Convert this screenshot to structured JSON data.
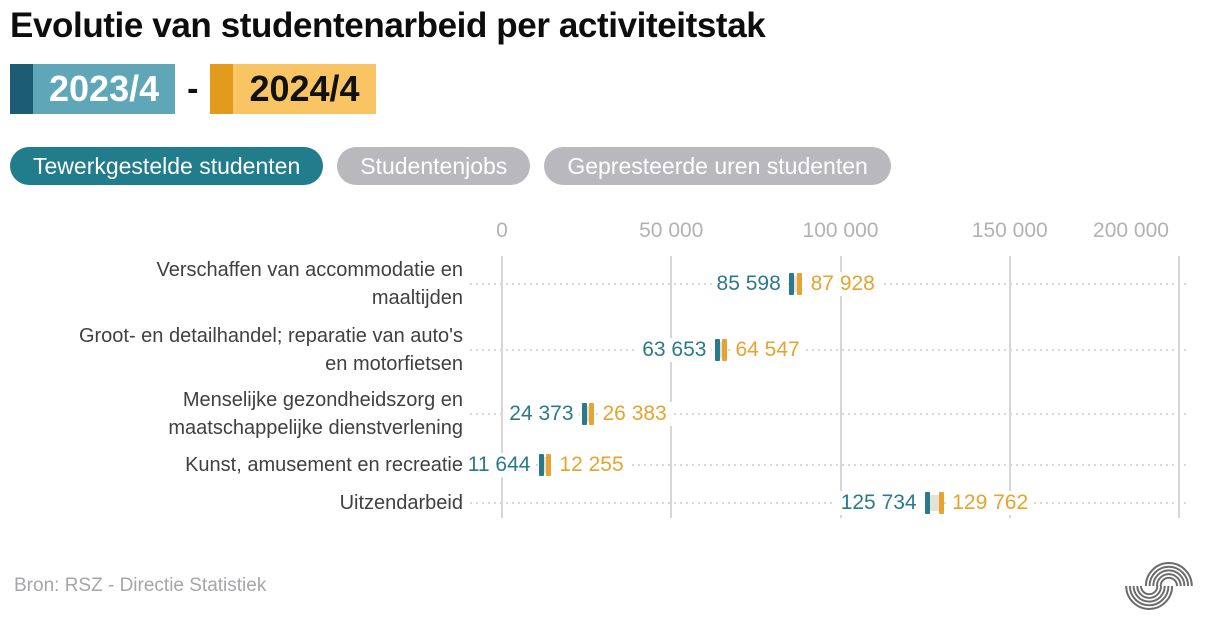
{
  "title": "Evolutie van studentenarbeid per activiteitstak",
  "period": {
    "from": "2023/4",
    "separator": "-",
    "to": "2024/4"
  },
  "tabs": [
    {
      "label": "Tewerkgestelde studenten",
      "active": true
    },
    {
      "label": "Studentenjobs",
      "active": false
    },
    {
      "label": "Gepresteerde uren studenten",
      "active": false
    }
  ],
  "source": "Bron: RSZ - Directie Statistiek",
  "colors": {
    "teal": "#2a7a8c",
    "orange": "#e6a32e",
    "teal_dark": "#1d5d73",
    "teal_light": "#5fa7b8",
    "orange_dark": "#e29b1d",
    "orange_light": "#f8c464",
    "tab_active": "#217c8b",
    "tab_inactive": "#b9b9bd",
    "grid": "#d6d6d8",
    "axis_text": "#b2b2b4"
  },
  "chart_data": {
    "type": "scatter",
    "subtype": "dumbbell-dotplot",
    "title": "Evolutie van studentenarbeid per activiteitstak",
    "xlabel": "",
    "ylabel": "",
    "xlim": [
      0,
      200000
    ],
    "grid": true,
    "legend_position": "title-badges",
    "categories": [
      "Verschaffen van accommodatie en\nmaaltijden",
      "Groot- en detailhandel; reparatie van auto's\nen motorfietsen",
      "Menselijke gezondheidszorg en\nmaatschappelijke dienstverlening",
      "Kunst, amusement en recreatie",
      "Uitzendarbeid"
    ],
    "series": [
      {
        "name": "2023/4",
        "color": "#2a7a8c",
        "values": [
          85598,
          63653,
          24373,
          11644,
          125734
        ]
      },
      {
        "name": "2024/4",
        "color": "#e6a32e",
        "values": [
          87928,
          64547,
          26383,
          12255,
          129762
        ]
      }
    ],
    "value_labels": [
      [
        "85 598",
        "87 928"
      ],
      [
        "63 653",
        "64 547"
      ],
      [
        "24 373",
        "26 383"
      ],
      [
        "11 644",
        "12 255"
      ],
      [
        "125 734",
        "129 762"
      ]
    ],
    "x_ticks": [
      {
        "value": 0,
        "label": "0"
      },
      {
        "value": 50000,
        "label": "50 000"
      },
      {
        "value": 100000,
        "label": "100 000"
      },
      {
        "value": 150000,
        "label": "150 000"
      },
      {
        "value": 200000,
        "label": "200 000"
      }
    ]
  }
}
